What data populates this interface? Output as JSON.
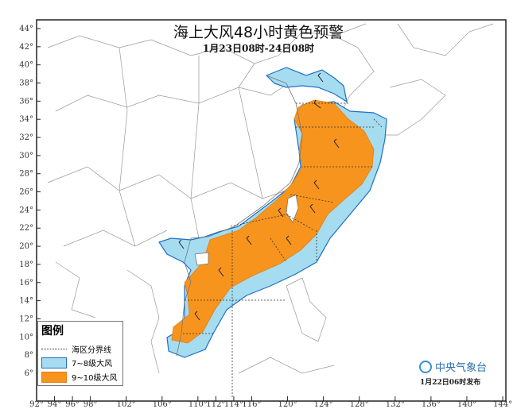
{
  "title": "海上大风48小时黄色预警",
  "subtitle": "1月23日08时-24日08时",
  "legend": {
    "title": "图例",
    "items": [
      {
        "label": "海区分界线",
        "kind": "dotted-line"
      },
      {
        "label": "7~8级大风",
        "color": "#a6dcef"
      },
      {
        "label": "9~10级大风",
        "color": "#f7941d"
      }
    ]
  },
  "logo": {
    "text": "中央气象台"
  },
  "issued": "1月22日06时发布",
  "axes": {
    "latitude_labels": [
      "44°",
      "42°",
      "40°",
      "38°",
      "36°",
      "34°",
      "32°",
      "30°",
      "28°",
      "26°",
      "24°",
      "22°",
      "20°",
      "18°",
      "16°",
      "14°",
      "12°",
      "10°",
      "8°",
      "6°"
    ],
    "longitude_labels": [
      "92°",
      "94°",
      "96°",
      "98°",
      "102°",
      "106°",
      "110°",
      "112°",
      "114°",
      "116°",
      "120°",
      "124°",
      "128°",
      "132°",
      "136°",
      "140°",
      "144°"
    ]
  },
  "colors": {
    "gale_7_8": "#a6dcef",
    "gale_9_10": "#f7941d",
    "boundary": "#1e6fc8"
  }
}
